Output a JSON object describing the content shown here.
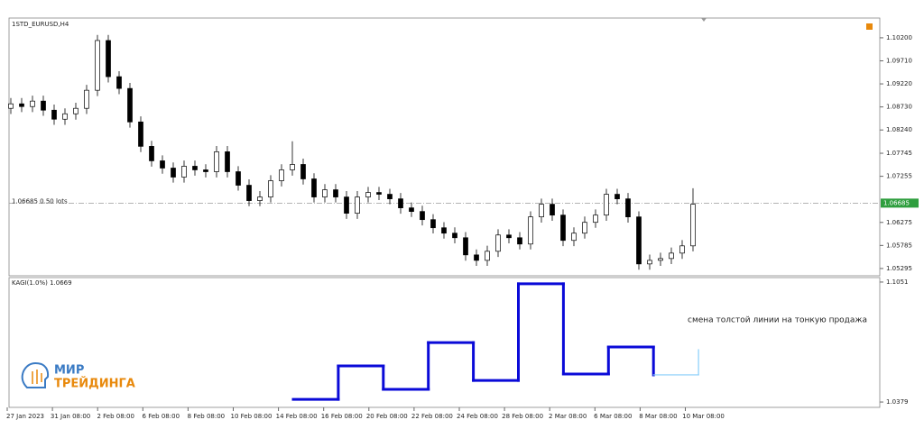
{
  "chart_data": [
    {
      "type": "candlestick",
      "title": "1STD_EURUSD,H4",
      "order_label": "1.06685 0.50 lots",
      "current_price": {
        "value": 1.06685,
        "label": "1.06685"
      },
      "open": [
        1.087,
        1.08796,
        1.08738,
        1.08854,
        1.08661,
        1.08469,
        1.08584,
        1.087,
        1.09084,
        1.10142,
        1.09373,
        1.09123,
        1.08411,
        1.07892,
        1.07584,
        1.0743,
        1.07238,
        1.07469,
        1.07392,
        1.07353,
        1.07777,
        1.07353,
        1.07065,
        1.06738,
        1.06815,
        1.07161,
        1.07392,
        1.07507,
        1.072,
        1.06815,
        1.06969,
        1.06815,
        1.06469,
        1.06815,
        1.06911,
        1.06873,
        1.06776,
        1.06584,
        1.06507,
        1.06334,
        1.06161,
        1.06046,
        1.05949,
        1.05584,
        1.05468,
        1.05661,
        1.06007,
        1.05949,
        1.05815,
        1.06392,
        1.06661,
        1.0643,
        1.05892,
        1.06046,
        1.06276,
        1.0643,
        1.06873,
        1.06776,
        1.06392,
        1.05392,
        1.05468,
        1.05507,
        1.05622,
        1.05776
      ],
      "high": [
        1.0892,
        1.0892,
        1.0897,
        1.0897,
        1.0878,
        1.087,
        1.0882,
        1.092,
        1.1026,
        1.1026,
        1.0949,
        1.0924,
        1.0853,
        1.0801,
        1.077,
        1.0755,
        1.0759,
        1.0759,
        1.0751,
        1.079,
        1.079,
        1.0747,
        1.0719,
        1.0694,
        1.0728,
        1.0751,
        1.08,
        1.0763,
        1.0732,
        1.0709,
        1.0709,
        1.0694,
        1.0694,
        1.0703,
        1.0703,
        1.0699,
        1.069,
        1.067,
        1.0663,
        1.0645,
        1.0628,
        1.0617,
        1.0607,
        1.057,
        1.0578,
        1.0613,
        1.0613,
        1.0607,
        1.0651,
        1.0678,
        1.0678,
        1.0655,
        1.0617,
        1.064,
        1.0655,
        1.0699,
        1.0699,
        1.069,
        1.0651,
        1.0559,
        1.0563,
        1.0574,
        1.059,
        1.07
      ],
      "low": [
        1.0858,
        1.0862,
        1.0862,
        1.0854,
        1.0835,
        1.0835,
        1.0846,
        1.0858,
        1.0896,
        1.0925,
        1.09,
        1.0829,
        1.0777,
        1.0746,
        1.0731,
        1.0712,
        1.0712,
        1.0727,
        1.0723,
        1.0723,
        1.0723,
        1.0695,
        1.0662,
        1.0662,
        1.067,
        1.0704,
        1.0727,
        1.0708,
        1.067,
        1.067,
        1.067,
        1.0635,
        1.0635,
        1.067,
        1.0675,
        1.0666,
        1.0646,
        1.0639,
        1.0621,
        1.0604,
        1.0593,
        1.0583,
        1.0546,
        1.0535,
        1.0535,
        1.0554,
        1.0583,
        1.057,
        1.057,
        1.0627,
        1.0631,
        1.0577,
        1.0577,
        1.0593,
        1.0616,
        1.0631,
        1.0666,
        1.0627,
        1.0527,
        1.0527,
        1.0535,
        1.0539,
        1.055,
        1.0566
      ],
      "close": [
        1.08796,
        1.08738,
        1.08854,
        1.08661,
        1.08469,
        1.08584,
        1.087,
        1.09084,
        1.10142,
        1.09373,
        1.09123,
        1.08411,
        1.07892,
        1.07584,
        1.0743,
        1.07238,
        1.07469,
        1.07392,
        1.07353,
        1.07777,
        1.07353,
        1.07065,
        1.06738,
        1.06815,
        1.07161,
        1.07392,
        1.07507,
        1.072,
        1.06815,
        1.06969,
        1.06815,
        1.06469,
        1.06815,
        1.06911,
        1.06873,
        1.06776,
        1.06584,
        1.06507,
        1.06334,
        1.06161,
        1.06046,
        1.05949,
        1.05584,
        1.05468,
        1.05661,
        1.06007,
        1.05949,
        1.05815,
        1.06392,
        1.06661,
        1.0643,
        1.05892,
        1.06046,
        1.06276,
        1.0643,
        1.06873,
        1.06776,
        1.06392,
        1.05392,
        1.05468,
        1.05507,
        1.05622,
        1.05776,
        1.06661
      ],
      "ylim": [
        1.0514,
        1.1062
      ],
      "yticks": [
        {
          "value": 1.102,
          "label": "1.10200"
        },
        {
          "value": 1.0971,
          "label": "1.09710"
        },
        {
          "value": 1.0922,
          "label": "1.09220"
        },
        {
          "value": 1.0873,
          "label": "1.08730"
        },
        {
          "value": 1.0824,
          "label": "1.08240"
        },
        {
          "value": 1.07745,
          "label": "1.07745"
        },
        {
          "value": 1.07255,
          "label": "1.07255"
        },
        {
          "value": 1.06275,
          "label": "1.06275"
        },
        {
          "value": 1.05785,
          "label": "1.05785"
        },
        {
          "value": 1.05295,
          "label": "1.05295"
        }
      ],
      "xtick_labels": [
        "27 Jan 2023",
        "31 Jan 08:00",
        "2 Feb 08:00",
        "6 Feb 08:00",
        "8 Feb 08:00",
        "10 Feb 08:00",
        "14 Feb 08:00",
        "16 Feb 08:00",
        "20 Feb 08:00",
        "22 Feb 08:00",
        "24 Feb 08:00",
        "28 Feb 08:00",
        "2 Mar 08:00",
        "6 Mar 08:00",
        "8 Mar 08:00",
        "10 Mar 08:00"
      ]
    },
    {
      "type": "kagi",
      "title": "KAGI(1.0%) 1.0669",
      "annotation": "смена толстой линии на тонкую продажа",
      "levels": [
        1.0394,
        1.0581,
        1.045,
        1.0712,
        1.05,
        1.1041,
        1.0536,
        1.0687,
        1.0531,
        1.0672
      ],
      "line_styles": [
        "thick",
        "thick",
        "thick",
        "thick",
        "thick",
        "thick",
        "thick",
        "thick",
        "thin"
      ],
      "colors": {
        "thick": "#0a0ad8",
        "thin": "#87cefa"
      },
      "ylim": [
        1.0349,
        1.1076
      ],
      "yticks": [
        1.1051,
        1.0379
      ]
    }
  ],
  "logo": {
    "line1": "МИР",
    "line2": "ТРЕЙДИНГА"
  }
}
